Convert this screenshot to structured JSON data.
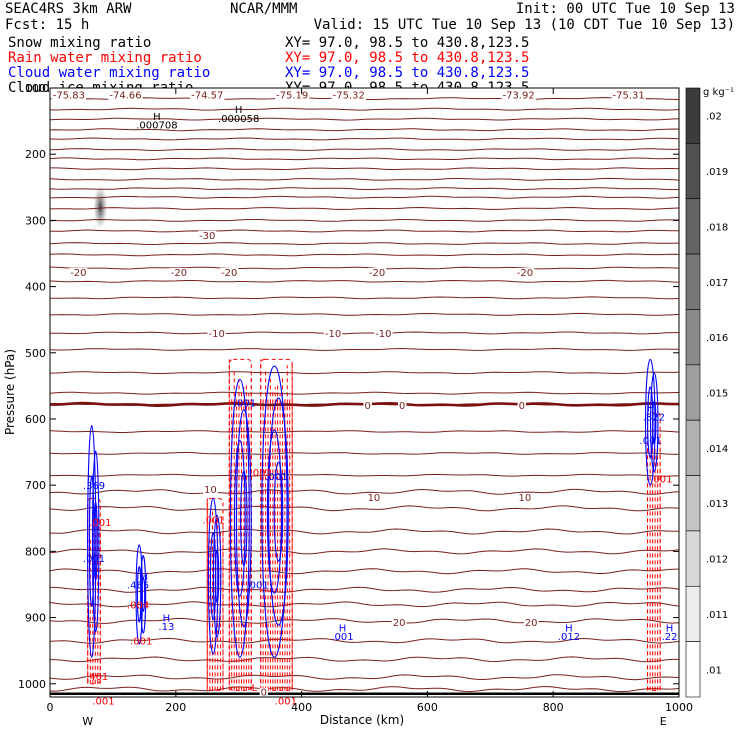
{
  "header": {
    "left_line1": "SEAC4RS  3km ARW",
    "center_line1": "NCAR/MMM",
    "right_line1": "Init: 00 UTC Tue 10 Sep 13",
    "left_line2": "Fcst:   15 h",
    "right_line2": "Valid: 15 UTC Tue 10 Sep 13 (10 CDT Tue 10 Sep 13)"
  },
  "fields": [
    {
      "name": "Snow mixing ratio",
      "xy": "XY=  97.0, 98.5 to 430.8,123.5",
      "color": "#000000"
    },
    {
      "name": "Rain water mixing ratio",
      "xy": "XY=  97.0, 98.5 to 430.8,123.5",
      "color": "#ff0000"
    },
    {
      "name": "Cloud water mixing ratio",
      "xy": "XY=  97.0, 98.5 to 430.8,123.5",
      "color": "#0000ff"
    },
    {
      "name": "Cloud ice mixing ratio",
      "xy": "XY=  97.0, 98.5 to 430.8,123.5",
      "color": "#000000"
    }
  ],
  "colorbar": {
    "unit": "g kg⁻¹",
    "labels": [
      ".02",
      ".019",
      ".018",
      ".017",
      ".016",
      ".015",
      ".014",
      ".013",
      ".012",
      ".011",
      ".01"
    ]
  },
  "colors": {
    "temperature": "#7a1f1f",
    "zero_isotherm": "#7a1010",
    "rain": "#ff0000",
    "cloud_water": "#0000ff",
    "snow": "#000000"
  },
  "chart_data": {
    "type": "vertical cross-section",
    "xlabel": "Distance (km)",
    "ylabel": "Pressure (hPa)",
    "xlim": [
      0,
      1000
    ],
    "ylim": [
      1020,
      100
    ],
    "x_ticks": [
      "0",
      "200",
      "400",
      "600",
      "800",
      "1000"
    ],
    "y_ticks": [
      "100",
      "200",
      "300",
      "400",
      "500",
      "600",
      "700",
      "800",
      "900",
      "1000"
    ],
    "x_end_labels": [
      "W",
      "E"
    ],
    "isotherm_pressures": [
      116,
      132,
      147,
      163,
      177,
      193,
      207,
      222,
      238,
      252,
      265,
      282,
      300,
      316,
      335,
      352,
      372,
      392,
      417,
      442,
      470,
      495,
      530,
      561,
      578,
      619,
      652,
      685,
      710,
      735,
      770,
      800,
      830,
      858,
      880,
      905,
      935,
      963,
      990,
      1008
    ],
    "zero_isotherm_pressure": 578,
    "isotherm_labels": [
      {
        "text": "-75.83",
        "x": 30,
        "p": 110
      },
      {
        "text": "-74.66",
        "x": 120,
        "p": 110
      },
      {
        "text": "-74.57",
        "x": 250,
        "p": 110
      },
      {
        "text": "-75.19",
        "x": 385,
        "p": 110
      },
      {
        "text": "-75.32",
        "x": 475,
        "p": 110
      },
      {
        "text": "-73.92",
        "x": 745,
        "p": 110
      },
      {
        "text": "-75.31",
        "x": 920,
        "p": 110
      },
      {
        "text": "-30",
        "x": 250,
        "p": 322
      },
      {
        "text": "-20",
        "x": 45,
        "p": 378
      },
      {
        "text": "-20",
        "x": 205,
        "p": 378
      },
      {
        "text": "-20",
        "x": 285,
        "p": 378
      },
      {
        "text": "-20",
        "x": 520,
        "p": 378
      },
      {
        "text": "-20",
        "x": 755,
        "p": 378
      },
      {
        "text": "-10",
        "x": 265,
        "p": 470
      },
      {
        "text": "-10",
        "x": 450,
        "p": 470
      },
      {
        "text": "-10",
        "x": 530,
        "p": 470
      },
      {
        "text": "0",
        "x": 505,
        "p": 579
      },
      {
        "text": "0",
        "x": 560,
        "p": 579
      },
      {
        "text": "0",
        "x": 750,
        "p": 579
      },
      {
        "text": "10",
        "x": 255,
        "p": 706
      },
      {
        "text": "10",
        "x": 515,
        "p": 718
      },
      {
        "text": "10",
        "x": 755,
        "p": 718
      },
      {
        "text": "20",
        "x": 555,
        "p": 907
      },
      {
        "text": "20",
        "x": 765,
        "p": 907
      },
      {
        "text": "0",
        "x": 340,
        "p": 1012
      }
    ],
    "maxima_labels": [
      {
        "text": "H",
        "x": 170,
        "p": 142,
        "color": "#000000"
      },
      {
        "text": ".000708",
        "x": 170,
        "p": 155,
        "color": "#000000"
      },
      {
        "text": "H",
        "x": 300,
        "p": 132,
        "color": "#000000"
      },
      {
        "text": ".000058",
        "x": 300,
        "p": 145,
        "color": "#000000"
      },
      {
        "text": "H",
        "x": 65,
        "p": 687,
        "color": "#0000ff"
      },
      {
        "text": ".369",
        "x": 70,
        "p": 700,
        "color": "#0000ff"
      },
      {
        "text": ".001",
        "x": 80,
        "p": 756,
        "color": "#ff0000"
      },
      {
        "text": ".001",
        "x": 70,
        "p": 810,
        "color": "#0000ff"
      },
      {
        "text": "H",
        "x": 150,
        "p": 837,
        "color": "#0000ff"
      },
      {
        "text": ".465",
        "x": 140,
        "p": 850,
        "color": "#0000ff"
      },
      {
        "text": ".004",
        "x": 140,
        "p": 880,
        "color": "#ff0000"
      },
      {
        "text": ".001",
        "x": 145,
        "p": 935,
        "color": "#ff0000"
      },
      {
        "text": "H",
        "x": 185,
        "p": 900,
        "color": "#0000ff"
      },
      {
        "text": ".13",
        "x": 185,
        "p": 913,
        "color": "#0000ff"
      },
      {
        "text": ".401",
        "x": 75,
        "p": 988,
        "color": "#ff0000"
      },
      {
        "text": ".001",
        "x": 85,
        "p": 1025,
        "color": "#ff0000"
      },
      {
        "text": ".001",
        "x": 260,
        "p": 752,
        "color": "#ff0000"
      },
      {
        "text": ".001",
        "x": 335,
        "p": 680,
        "color": "#ff0000"
      },
      {
        "text": ".001",
        "x": 310,
        "p": 575,
        "color": "#0000ff"
      },
      {
        "text": ".001",
        "x": 360,
        "p": 686,
        "color": "#0000ff"
      },
      {
        "text": ".001",
        "x": 330,
        "p": 850,
        "color": "#0000ff"
      },
      {
        "text": "H",
        "x": 465,
        "p": 915,
        "color": "#0000ff"
      },
      {
        "text": ".001",
        "x": 465,
        "p": 928,
        "color": "#0000ff"
      },
      {
        "text": "H",
        "x": 825,
        "p": 915,
        "color": "#0000ff"
      },
      {
        "text": ".012",
        "x": 825,
        "p": 928,
        "color": "#0000ff"
      },
      {
        "text": "H",
        "x": 955,
        "p": 583,
        "color": "#0000ff"
      },
      {
        "text": ".822",
        "x": 960,
        "p": 596,
        "color": "#0000ff"
      },
      {
        "text": ".001",
        "x": 955,
        "p": 632,
        "color": "#0000ff"
      },
      {
        "text": ".001",
        "x": 972,
        "p": 690,
        "color": "#ff0000"
      },
      {
        "text": "H",
        "x": 985,
        "p": 915,
        "color": "#0000ff"
      },
      {
        "text": ".22",
        "x": 985,
        "p": 928,
        "color": "#0000ff"
      },
      {
        "text": ".001",
        "x": 375,
        "p": 1025,
        "color": "#ff0000"
      },
      {
        "text": "L",
        "x": 325,
        "p": 1005,
        "color": "#ff0000"
      }
    ],
    "cloud_water_cells": [
      {
        "x0": 63,
        "x1": 76,
        "ptop": 610,
        "pbot": 960
      },
      {
        "x0": 140,
        "x1": 150,
        "ptop": 790,
        "pbot": 940
      },
      {
        "x0": 255,
        "x1": 270,
        "ptop": 720,
        "pbot": 955
      },
      {
        "x0": 290,
        "x1": 320,
        "ptop": 540,
        "pbot": 960
      },
      {
        "x0": 340,
        "x1": 380,
        "ptop": 520,
        "pbot": 960
      },
      {
        "x0": 950,
        "x1": 965,
        "ptop": 510,
        "pbot": 700
      }
    ],
    "rain_cells": [
      {
        "x0": 60,
        "x1": 80,
        "ptop": 720,
        "pbot": 1000
      },
      {
        "x0": 250,
        "x1": 275,
        "ptop": 720,
        "pbot": 1010
      },
      {
        "x0": 285,
        "x1": 320,
        "ptop": 510,
        "pbot": 1010
      },
      {
        "x0": 335,
        "x1": 385,
        "ptop": 510,
        "pbot": 1010
      },
      {
        "x0": 950,
        "x1": 970,
        "ptop": 590,
        "pbot": 1010
      }
    ],
    "snow_blob": {
      "x": 80,
      "p": 280
    }
  }
}
